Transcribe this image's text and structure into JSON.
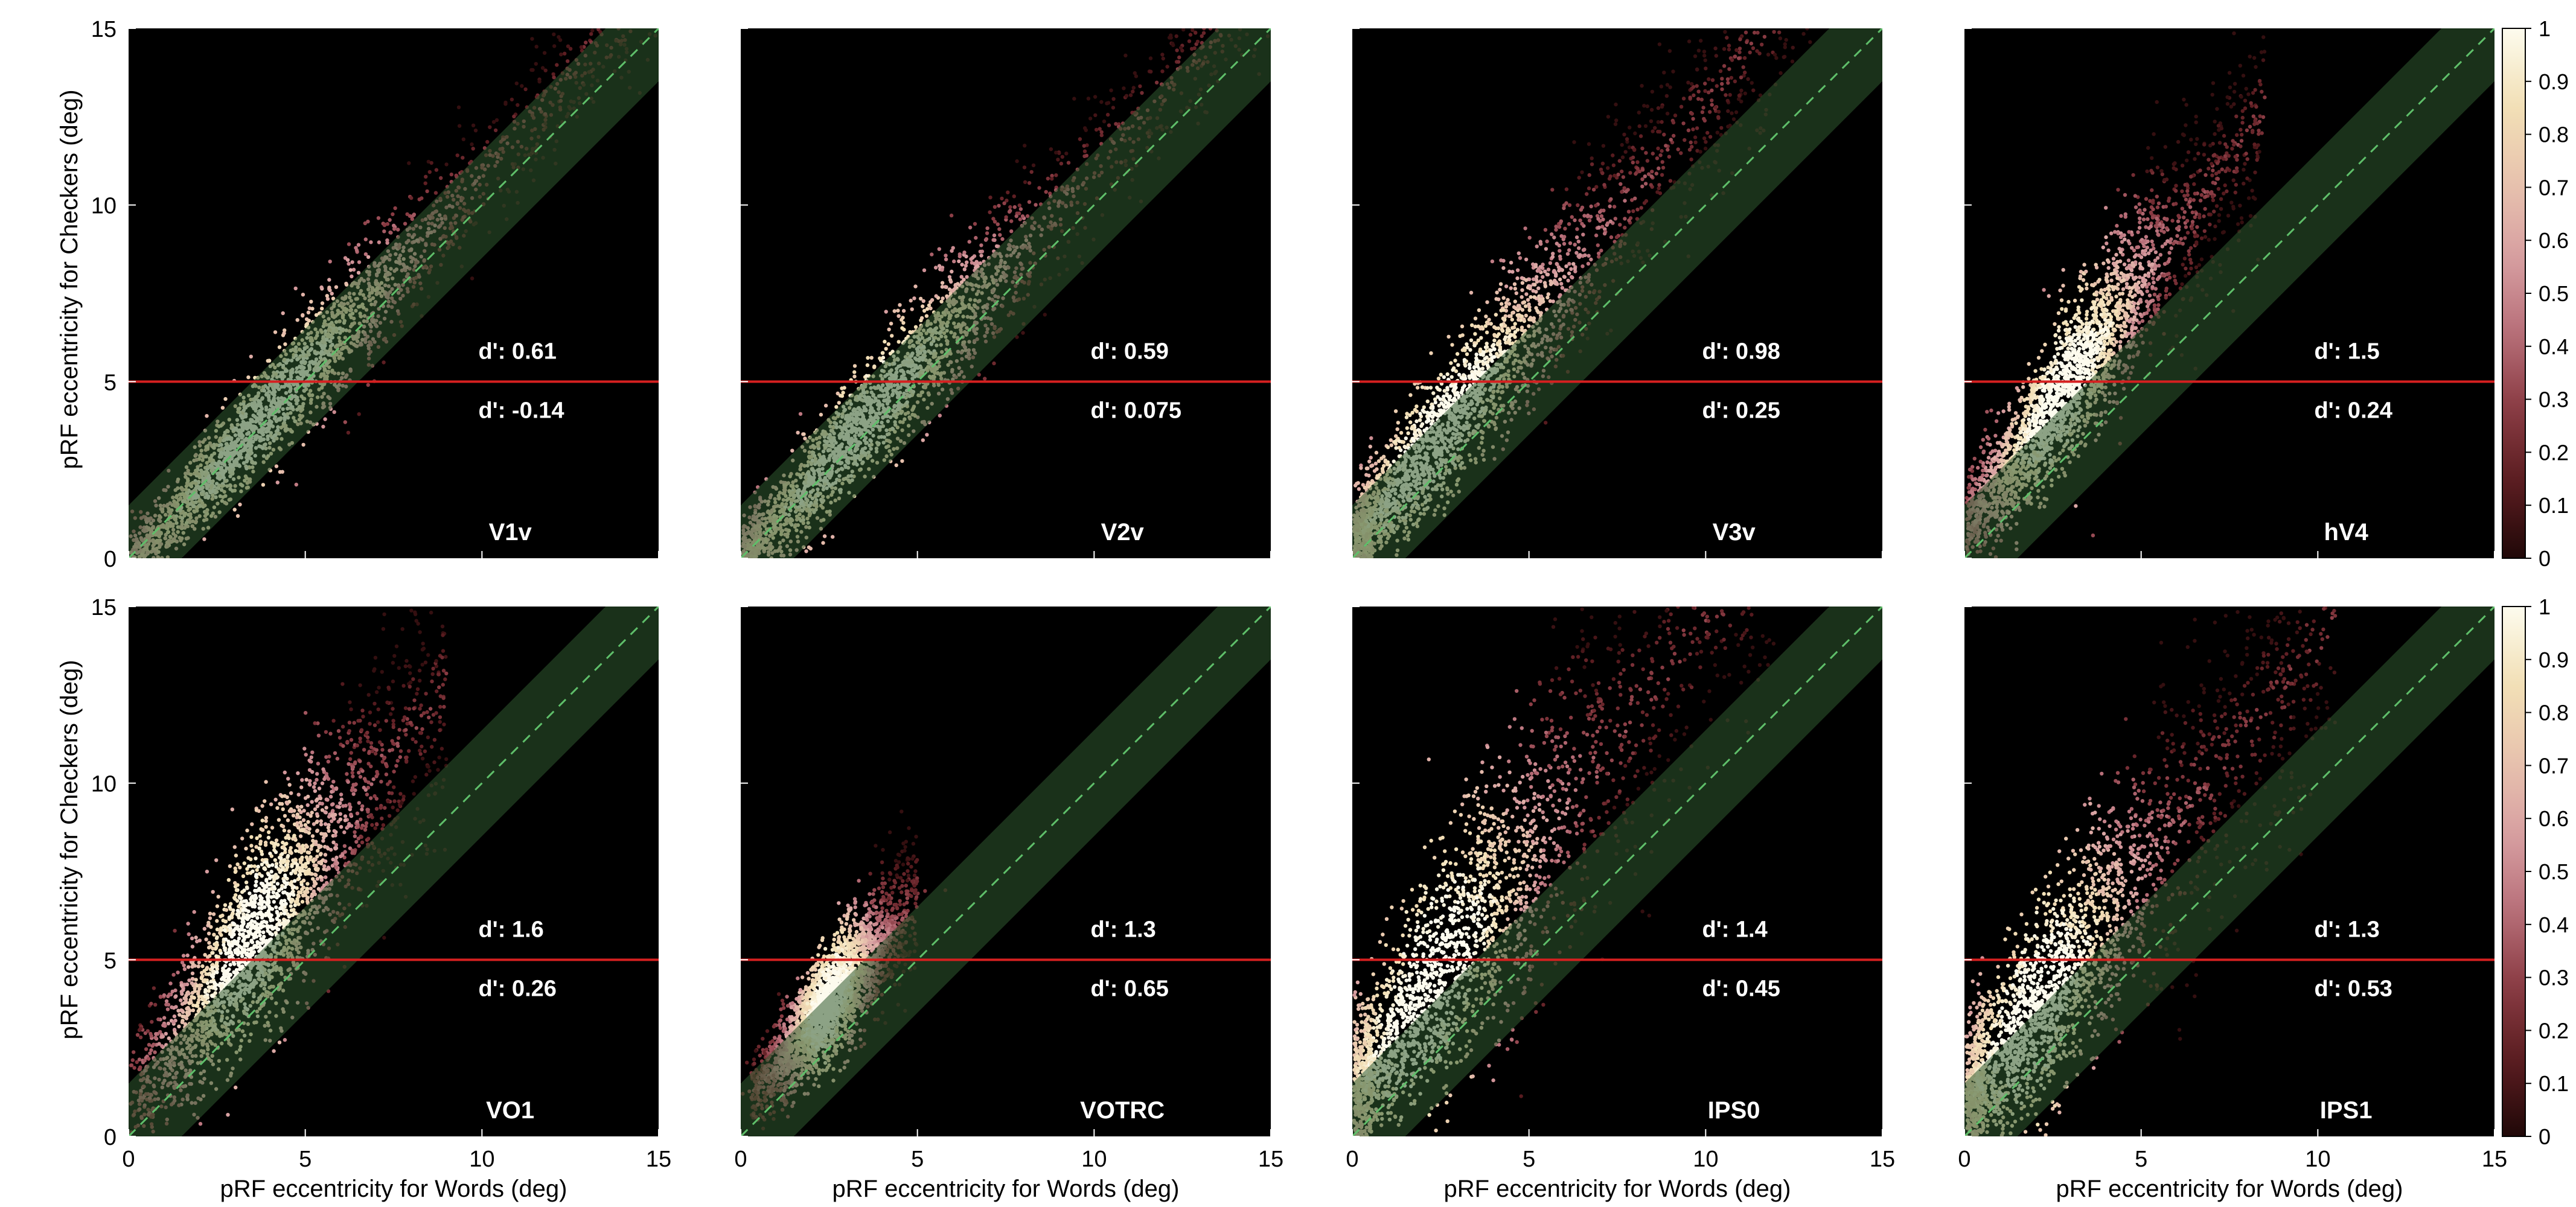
{
  "figure": {
    "ylabel": "pRF eccentricity for Checkers (deg)",
    "xlabel": "pRF eccentricity for Words (deg)"
  },
  "colorbar": {
    "ticks": [
      "0",
      "0.1",
      "0.2",
      "0.3",
      "0.4",
      "0.5",
      "0.6",
      "0.7",
      "0.8",
      "0.9",
      "1"
    ],
    "range": [
      0,
      1
    ],
    "colors": [
      "#200808",
      "#5a1c20",
      "#8a3c44",
      "#b8707a",
      "#d8a0a2",
      "#e8c4ae",
      "#f2e0b6",
      "#fdfbee"
    ]
  },
  "style": {
    "panel_background": "#000000",
    "band_color": "#2f5a2f",
    "diagonal_color": "#5fbf6a",
    "threshold_color": "#d62020",
    "label_color": "#ffffff"
  },
  "chart_data": [
    {
      "type": "scatter",
      "region": "V1v",
      "dprime_upper": "d': 0.61",
      "dprime_lower": "d': -0.14",
      "threshold": 5,
      "band_halfwidth": 1.5,
      "xlim": [
        0,
        15
      ],
      "ylim": [
        0,
        15
      ],
      "xticks": [
        "0",
        "5",
        "10",
        "15"
      ],
      "yticks": [
        "0",
        "5",
        "10",
        "15"
      ],
      "show_xticks": false,
      "show_yticks": true,
      "cloud": {
        "slope": 1.12,
        "intercept": -0.3,
        "spread": 0.9,
        "xmin": 0.2,
        "xmax": 15,
        "density_peak_x": 3.8
      }
    },
    {
      "type": "scatter",
      "region": "V2v",
      "dprime_upper": "d': 0.59",
      "dprime_lower": "d': 0.075",
      "threshold": 5,
      "band_halfwidth": 1.5,
      "xlim": [
        0,
        15
      ],
      "ylim": [
        0,
        15
      ],
      "xticks": [
        "0",
        "5",
        "10",
        "15"
      ],
      "yticks": [
        "0",
        "5",
        "10",
        "15"
      ],
      "show_xticks": false,
      "show_yticks": false,
      "cloud": {
        "slope": 1.12,
        "intercept": -0.1,
        "spread": 1.0,
        "xmin": 0.2,
        "xmax": 15,
        "density_peak_x": 3.5
      }
    },
    {
      "type": "scatter",
      "region": "V3v",
      "dprime_upper": "d': 0.98",
      "dprime_lower": "d': 0.25",
      "threshold": 5,
      "band_halfwidth": 1.5,
      "xlim": [
        0,
        15
      ],
      "ylim": [
        0,
        15
      ],
      "xticks": [
        "0",
        "5",
        "10",
        "15"
      ],
      "yticks": [
        "0",
        "5",
        "10",
        "15"
      ],
      "show_xticks": false,
      "show_yticks": false,
      "cloud": {
        "slope": 1.25,
        "intercept": 0.4,
        "spread": 1.3,
        "xmin": 0.1,
        "xmax": 13,
        "density_peak_x": 2.5
      }
    },
    {
      "type": "scatter",
      "region": "hV4",
      "dprime_upper": "d': 1.5",
      "dprime_lower": "d': 0.24",
      "threshold": 5,
      "band_halfwidth": 1.5,
      "xlim": [
        0,
        15
      ],
      "ylim": [
        0,
        15
      ],
      "xticks": [
        "0",
        "5",
        "10",
        "15"
      ],
      "yticks": [
        "0",
        "5",
        "10",
        "15"
      ],
      "show_xticks": false,
      "show_yticks": false,
      "cloud": {
        "slope": 1.4,
        "intercept": 0.8,
        "spread": 1.4,
        "xmin": 0.1,
        "xmax": 8.5,
        "density_peak_x": 2.8
      }
    },
    {
      "type": "scatter",
      "region": "VO1",
      "dprime_upper": "d': 1.6",
      "dprime_lower": "d': 0.26",
      "threshold": 5,
      "band_halfwidth": 1.5,
      "xlim": [
        0,
        15
      ],
      "ylim": [
        0,
        15
      ],
      "xticks": [
        "0",
        "5",
        "10",
        "15"
      ],
      "yticks": [
        "0",
        "5",
        "10",
        "15"
      ],
      "show_xticks": true,
      "show_yticks": true,
      "cloud": {
        "slope": 1.3,
        "intercept": 1.0,
        "spread": 1.7,
        "xmin": 0.3,
        "xmax": 9,
        "density_peak_x": 3.5
      }
    },
    {
      "type": "scatter",
      "region": "VOTRC",
      "dprime_upper": "d': 1.3",
      "dprime_lower": "d': 0.65",
      "threshold": 5,
      "band_halfwidth": 1.5,
      "xlim": [
        0,
        15
      ],
      "ylim": [
        0,
        15
      ],
      "xticks": [
        "0",
        "5",
        "10",
        "15"
      ],
      "yticks": [
        "0",
        "5",
        "10",
        "15"
      ],
      "show_xticks": true,
      "show_yticks": false,
      "cloud": {
        "slope": 1.2,
        "intercept": 0.8,
        "spread": 1.1,
        "xmin": 0.3,
        "xmax": 5,
        "density_peak_x": 2.5
      }
    },
    {
      "type": "scatter",
      "region": "IPS0",
      "dprime_upper": "d': 1.4",
      "dprime_lower": "d': 0.45",
      "threshold": 5,
      "band_halfwidth": 1.5,
      "xlim": [
        0,
        15
      ],
      "ylim": [
        0,
        15
      ],
      "xticks": [
        "0",
        "5",
        "10",
        "15"
      ],
      "yticks": [
        "0",
        "5",
        "10",
        "15"
      ],
      "show_xticks": true,
      "show_yticks": false,
      "cloud": {
        "slope": 1.35,
        "intercept": 1.2,
        "spread": 2.3,
        "xmin": 0.1,
        "xmax": 12,
        "density_peak_x": 2.2
      }
    },
    {
      "type": "scatter",
      "region": "IPS1",
      "dprime_upper": "d': 1.3",
      "dprime_lower": "d': 0.53",
      "threshold": 5,
      "band_halfwidth": 1.5,
      "xlim": [
        0,
        15
      ],
      "ylim": [
        0,
        15
      ],
      "xticks": [
        "0",
        "5",
        "10",
        "15"
      ],
      "yticks": [
        "0",
        "5",
        "10",
        "15"
      ],
      "show_xticks": true,
      "show_yticks": false,
      "cloud": {
        "slope": 1.3,
        "intercept": 1.0,
        "spread": 2.0,
        "xmin": 0.1,
        "xmax": 10.5,
        "density_peak_x": 2.0
      }
    }
  ]
}
